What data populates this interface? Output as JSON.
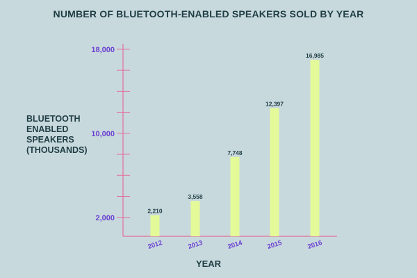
{
  "chart_data": {
    "type": "bar",
    "title": "NUMBER OF BLUETOOTH-ENABLED SPEAKERS SOLD BY YEAR",
    "xlabel": "YEAR",
    "ylabel": "BLUETOOTH\nENABLED\nSPEAKERS\n(THOUSANDS)",
    "categories": [
      "2012",
      "2013",
      "2014",
      "2015",
      "2016"
    ],
    "values": [
      2210,
      3558,
      7748,
      12397,
      16985
    ],
    "value_labels": [
      "2,210",
      "3,558",
      "7,748",
      "12,397",
      "16,985"
    ],
    "ylim": [
      0,
      18000
    ],
    "y_tick_labels": [
      {
        "value": 2000,
        "label": "2,000"
      },
      {
        "value": 10000,
        "label": "10,000"
      },
      {
        "value": 18000,
        "label": "18,000"
      }
    ],
    "minor_tick_step": 2000,
    "grid": false,
    "colors": {
      "bar": "#e4fa98",
      "axis": "#e0709a",
      "tick_label": "#6a3fd0",
      "value_label": "#1f3d44"
    }
  }
}
